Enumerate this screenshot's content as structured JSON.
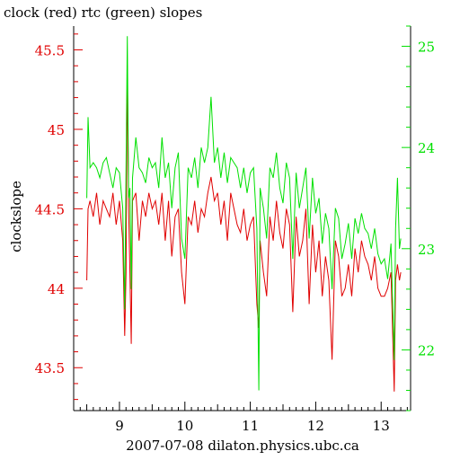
{
  "chart_data": {
    "type": "line",
    "title": "clock (red) rtc (green) slopes",
    "xlabel": "2007-07-08 dilaton.physics.ubc.ca",
    "ylabel": "clockslope",
    "xlim": [
      8.3,
      13.45
    ],
    "ylim_left": [
      43.23,
      45.65
    ],
    "ylim_right": [
      21.4,
      25.2
    ],
    "x_ticks": [
      9,
      10,
      11,
      12,
      13
    ],
    "x_tick_labels": [
      "9",
      "10",
      "11",
      "12",
      "13"
    ],
    "y_left_ticks": [
      43.5,
      44,
      44.5,
      45,
      45.5
    ],
    "y_left_tick_labels": [
      "43.5",
      "44",
      "44.5",
      "45",
      "45.5"
    ],
    "y_right_ticks": [
      22,
      23,
      24,
      25
    ],
    "y_right_tick_labels": [
      "22",
      "23",
      "24",
      "25"
    ],
    "colors": {
      "clock": "#e00000",
      "rtc": "#00e000",
      "axes": "#000000",
      "left_ticks": "#e00000",
      "right_ticks": "#00e000"
    },
    "series": [
      {
        "axis": "left",
        "color": "#e00000",
        "x": [
          8.5,
          8.52,
          8.55,
          8.6,
          8.65,
          8.7,
          8.75,
          8.8,
          8.85,
          8.9,
          8.95,
          9.0,
          9.05,
          9.08,
          9.1,
          9.12,
          9.14,
          9.16,
          9.18,
          9.2,
          9.25,
          9.3,
          9.35,
          9.4,
          9.45,
          9.5,
          9.55,
          9.6,
          9.65,
          9.7,
          9.75,
          9.8,
          9.85,
          9.9,
          9.95,
          10.0,
          10.05,
          10.1,
          10.15,
          10.2,
          10.25,
          10.3,
          10.35,
          10.4,
          10.45,
          10.5,
          10.55,
          10.6,
          10.65,
          10.7,
          10.75,
          10.8,
          10.85,
          10.9,
          10.95,
          11.0,
          11.05,
          11.1,
          11.13,
          11.15,
          11.2,
          11.25,
          11.3,
          11.35,
          11.4,
          11.45,
          11.5,
          11.55,
          11.6,
          11.65,
          11.7,
          11.75,
          11.8,
          11.85,
          11.9,
          11.95,
          12.0,
          12.05,
          12.1,
          12.15,
          12.2,
          12.25,
          12.3,
          12.35,
          12.4,
          12.45,
          12.5,
          12.55,
          12.6,
          12.65,
          12.7,
          12.75,
          12.8,
          12.85,
          12.9,
          12.95,
          13.0,
          13.05,
          13.1,
          13.15,
          13.2,
          13.22,
          13.25,
          13.28,
          13.3
        ],
        "y": [
          44.05,
          44.5,
          44.55,
          44.45,
          44.6,
          44.4,
          44.55,
          44.5,
          44.45,
          44.6,
          44.4,
          44.55,
          44.3,
          43.7,
          44.1,
          45.4,
          44.5,
          44.1,
          43.65,
          44.55,
          44.6,
          44.3,
          44.55,
          44.45,
          44.6,
          44.5,
          44.55,
          44.4,
          44.6,
          44.3,
          44.55,
          44.2,
          44.45,
          44.5,
          44.1,
          43.9,
          44.45,
          44.4,
          44.55,
          44.35,
          44.5,
          44.45,
          44.6,
          44.7,
          44.55,
          44.6,
          44.4,
          44.55,
          44.3,
          44.6,
          44.5,
          44.4,
          44.35,
          44.5,
          44.3,
          44.4,
          44.45,
          43.9,
          43.75,
          44.3,
          44.1,
          43.95,
          44.45,
          44.3,
          44.55,
          44.35,
          44.25,
          44.5,
          44.4,
          43.85,
          44.45,
          44.2,
          44.3,
          44.5,
          43.9,
          44.4,
          44.1,
          44.3,
          43.95,
          44.2,
          44.05,
          43.55,
          44.3,
          44.2,
          43.95,
          44.0,
          44.15,
          43.95,
          44.25,
          44.1,
          44.3,
          44.2,
          44.15,
          44.05,
          44.2,
          44.0,
          43.95,
          43.95,
          44.0,
          44.1,
          43.35,
          44.05,
          44.15,
          44.05,
          44.1
        ]
      },
      {
        "axis": "right",
        "color": "#00e000",
        "x": [
          8.5,
          8.52,
          8.55,
          8.6,
          8.65,
          8.7,
          8.75,
          8.8,
          8.85,
          8.9,
          8.95,
          9.0,
          9.05,
          9.08,
          9.1,
          9.12,
          9.14,
          9.16,
          9.18,
          9.2,
          9.25,
          9.3,
          9.35,
          9.4,
          9.45,
          9.5,
          9.55,
          9.6,
          9.65,
          9.7,
          9.75,
          9.8,
          9.85,
          9.9,
          9.95,
          10.0,
          10.05,
          10.1,
          10.15,
          10.2,
          10.25,
          10.3,
          10.35,
          10.4,
          10.45,
          10.5,
          10.55,
          10.6,
          10.65,
          10.7,
          10.75,
          10.8,
          10.85,
          10.9,
          10.95,
          11.0,
          11.05,
          11.1,
          11.13,
          11.15,
          11.2,
          11.25,
          11.3,
          11.35,
          11.4,
          11.45,
          11.5,
          11.55,
          11.6,
          11.65,
          11.7,
          11.75,
          11.8,
          11.85,
          11.9,
          11.95,
          12.0,
          12.05,
          12.1,
          12.15,
          12.2,
          12.25,
          12.3,
          12.35,
          12.4,
          12.45,
          12.5,
          12.55,
          12.6,
          12.65,
          12.7,
          12.75,
          12.8,
          12.85,
          12.9,
          12.95,
          13.0,
          13.05,
          13.1,
          13.15,
          13.2,
          13.22,
          13.25,
          13.28,
          13.3
        ],
        "y": [
          23.5,
          24.3,
          23.8,
          23.85,
          23.8,
          23.7,
          23.85,
          23.9,
          23.75,
          23.6,
          23.8,
          23.75,
          23.4,
          22.4,
          23.8,
          25.1,
          23.5,
          23.6,
          22.6,
          23.7,
          24.1,
          23.8,
          23.75,
          23.65,
          23.9,
          23.8,
          23.85,
          23.6,
          24.1,
          23.7,
          23.85,
          23.4,
          23.8,
          23.95,
          23.1,
          22.9,
          23.8,
          23.7,
          23.9,
          23.6,
          24.0,
          23.85,
          24.0,
          24.5,
          23.85,
          24.0,
          23.7,
          23.95,
          23.65,
          23.9,
          23.85,
          23.8,
          23.6,
          23.8,
          23.55,
          23.75,
          23.8,
          23.2,
          21.6,
          23.6,
          23.4,
          23.1,
          23.8,
          23.7,
          23.95,
          23.6,
          23.45,
          23.85,
          23.7,
          22.9,
          23.75,
          23.4,
          23.6,
          23.8,
          23.1,
          23.7,
          23.35,
          23.5,
          23.05,
          23.35,
          23.2,
          22.6,
          23.4,
          23.3,
          22.9,
          23.05,
          23.25,
          22.9,
          23.3,
          23.15,
          23.35,
          23.2,
          23.15,
          23.0,
          23.2,
          22.95,
          22.85,
          22.9,
          22.7,
          23.05,
          21.9,
          23.2,
          23.7,
          23.0,
          23.1
        ]
      }
    ]
  }
}
